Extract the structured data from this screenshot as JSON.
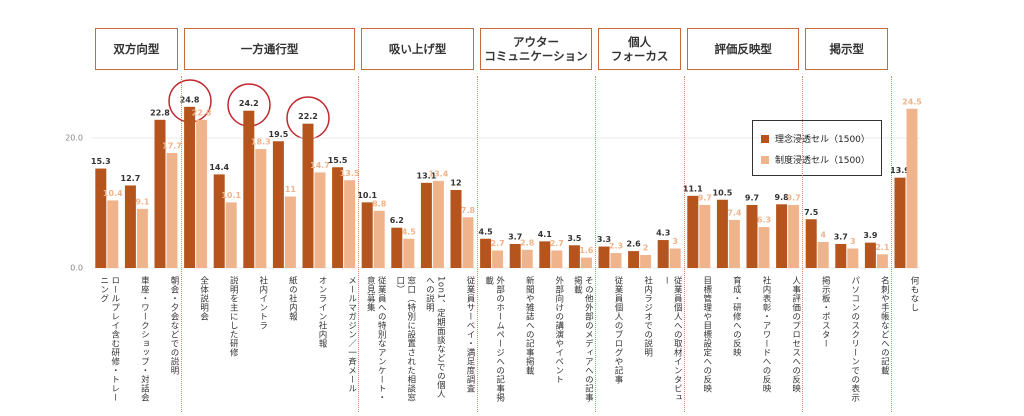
{
  "chart_data": {
    "type": "bar",
    "groups": [
      {
        "label": "双方向型",
        "categories": [
          "ロールプレイ含む研修・トレーニング",
          "車座・ワークショップ・対話会",
          "朝会・夕会などでの説明"
        ]
      },
      {
        "label": "一方通行型",
        "categories": [
          "全体説明会",
          "説明を主にした研修",
          "社内イントラ",
          "紙の社内報",
          "オンライン社内報",
          "メールマガジン／一斉メール"
        ]
      },
      {
        "label": "吸い上げ型",
        "categories": [
          "従業員への特別なアンケート・意見募集",
          "窓口（特別に設置された相談窓口）",
          "1on1、定期面談などでの個人への説明",
          "従業員サーベイ・満足度調査"
        ]
      },
      {
        "label": "アウター\nコミュニケーション",
        "categories": [
          "外部のホームページへの記事掲載",
          "新聞や雑誌への記事掲載",
          "外部向けの講演やイベント",
          "その他外部のメディアへの記事掲載"
        ]
      },
      {
        "label": "個人\nフォーカス",
        "categories": [
          "従業員個人のブログや記事",
          "社内ラジオでの説明",
          "従業員個人への取材インタビュー"
        ]
      },
      {
        "label": "評価反映型",
        "categories": [
          "目標管理や目標設定への反映",
          "育成・研修への反映",
          "社内表彰・アワードへの反映",
          "人事評価のプロセスへの反映"
        ]
      },
      {
        "label": "掲示型",
        "categories": [
          "掲示板・ポスター",
          "パソコンのスクリーンでの表示",
          "名刺や手帳などへの記載"
        ]
      },
      {
        "label": null,
        "categories": [
          "何もなし"
        ]
      }
    ],
    "series": [
      {
        "name": "理念浸透セル（1500）",
        "color": "#b5551d",
        "values": [
          15.3,
          12.7,
          22.8,
          24.8,
          14.4,
          24.2,
          19.5,
          22.2,
          15.5,
          10.1,
          6.2,
          13.1,
          12.0,
          4.5,
          3.7,
          4.1,
          3.5,
          3.3,
          2.6,
          4.3,
          11.1,
          10.5,
          9.7,
          9.8,
          7.5,
          3.7,
          3.9,
          13.9
        ]
      },
      {
        "name": "制度浸透セル（1500）",
        "color": "#f0b48c",
        "values": [
          10.4,
          9.1,
          17.7,
          22.8,
          10.1,
          18.3,
          11.0,
          14.7,
          13.5,
          8.8,
          4.5,
          13.4,
          7.8,
          2.7,
          2.8,
          2.7,
          1.6,
          2.3,
          2.0,
          3.0,
          9.7,
          7.4,
          6.3,
          9.7,
          4.0,
          3.0,
          2.1,
          24.5
        ]
      }
    ],
    "ylim": [
      0,
      26
    ],
    "yticks": [
      {
        "value": 0,
        "label": "0.0"
      },
      {
        "value": 20,
        "label": "20.0"
      }
    ]
  }
}
